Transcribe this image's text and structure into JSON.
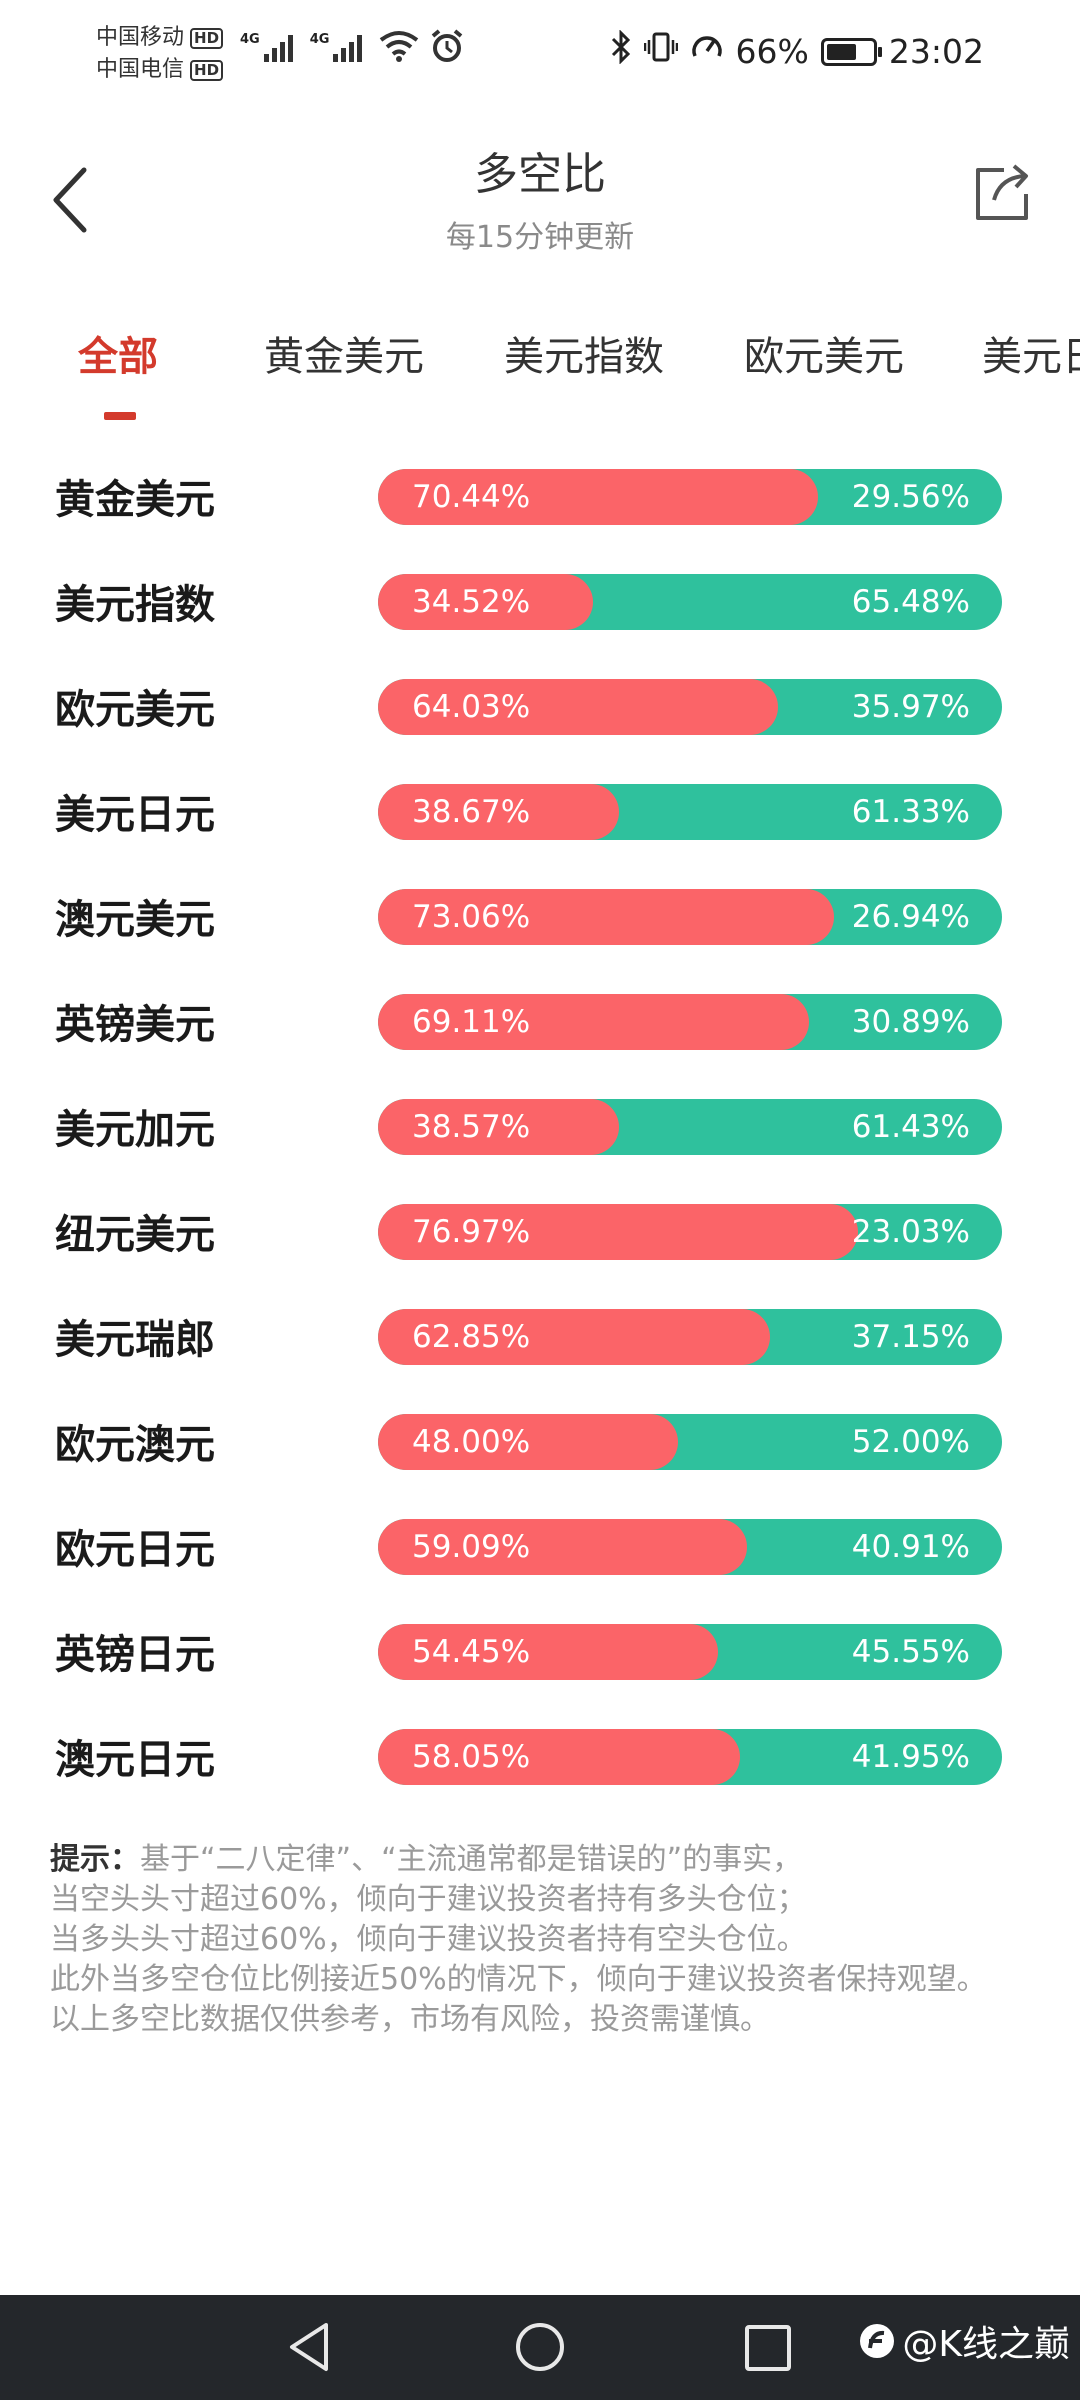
{
  "status_bar": {
    "carrier1": "中国移动",
    "carrier2": "中国电信",
    "hd_label": "HD",
    "network1": "4G",
    "network2": "4G",
    "battery_pct": "66%",
    "battery_level": 0.66,
    "time": "23:02"
  },
  "header": {
    "title": "多空比",
    "subtitle": "每15分钟更新"
  },
  "tabs": [
    {
      "label": "全部",
      "active": true
    },
    {
      "label": "黄金美元"
    },
    {
      "label": "美元指数"
    },
    {
      "label": "欧元美元"
    },
    {
      "label": "美元日元"
    }
  ],
  "rows": [
    {
      "name": "黄金美元",
      "long": "70.44%",
      "short": "29.56%",
      "long_value": 70.44
    },
    {
      "name": "美元指数",
      "long": "34.52%",
      "short": "65.48%",
      "long_value": 34.52
    },
    {
      "name": "欧元美元",
      "long": "64.03%",
      "short": "35.97%",
      "long_value": 64.03
    },
    {
      "name": "美元日元",
      "long": "38.67%",
      "short": "61.33%",
      "long_value": 38.67
    },
    {
      "name": "澳元美元",
      "long": "73.06%",
      "short": "26.94%",
      "long_value": 73.06
    },
    {
      "name": "英镑美元",
      "long": "69.11%",
      "short": "30.89%",
      "long_value": 69.11
    },
    {
      "name": "美元加元",
      "long": "38.57%",
      "short": "61.43%",
      "long_value": 38.57
    },
    {
      "name": "纽元美元",
      "long": "76.97%",
      "short": "23.03%",
      "long_value": 76.97
    },
    {
      "name": "美元瑞郎",
      "long": "62.85%",
      "short": "37.15%",
      "long_value": 62.85
    },
    {
      "name": "欧元澳元",
      "long": "48.00%",
      "short": "52.00%",
      "long_value": 48.0
    },
    {
      "name": "欧元日元",
      "long": "59.09%",
      "short": "40.91%",
      "long_value": 59.09
    },
    {
      "name": "英镑日元",
      "long": "54.45%",
      "short": "45.55%",
      "long_value": 54.45
    },
    {
      "name": "澳元日元",
      "long": "58.05%",
      "short": "41.95%",
      "long_value": 58.05
    }
  ],
  "tips": {
    "label": "提示：",
    "line1": "基于“二八定律”、“主流通常都是错误的”的事实，",
    "line2": "当空头头寸超过60%，倾向于建议投资者持有多头仓位；",
    "line3": "当多头头寸超过60%，倾向于建议投资者持有空头仓位。",
    "line4": "此外当多空仓位比例接近50%的情况下，倾向于建议投资者保持观望。",
    "line5": "以上多空比数据仅供参考，市场有风险，投资需谨慎。"
  },
  "watermark": "@K线之巅",
  "colors": {
    "long": "#fb6468",
    "short": "#2fc19d",
    "accent": "#d33a2c"
  },
  "icons": {
    "back": "chevron-left-icon",
    "share": "share-icon",
    "nav_back": "triangle-back-icon",
    "nav_home": "circle-home-icon",
    "nav_recent": "square-recent-icon"
  }
}
